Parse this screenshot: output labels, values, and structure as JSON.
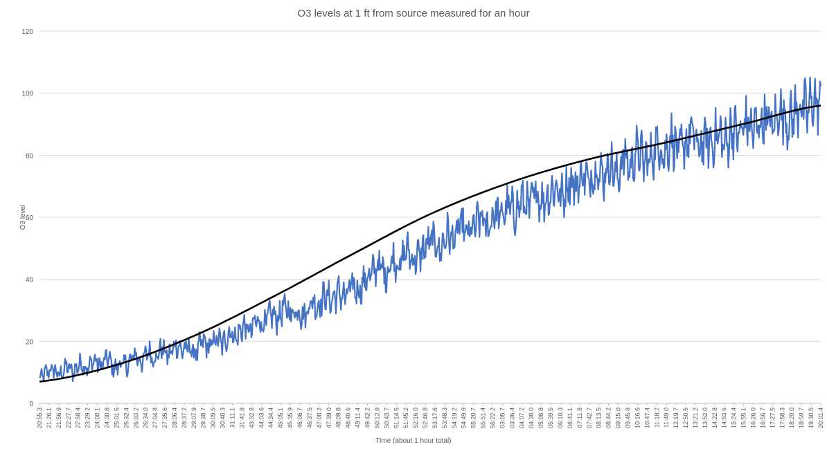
{
  "chart_data": {
    "type": "line",
    "title": "O3 levels at 1 ft from source measured for an hour",
    "xlabel": "Time (about 1 hour total)",
    "ylabel": "O3 level",
    "ylim": [
      0,
      120
    ],
    "yticks": [
      0,
      20,
      40,
      60,
      80,
      100,
      120
    ],
    "grid": true,
    "legend": "none",
    "x_tick_labels": [
      "20:55.3",
      "21:26.1",
      "21:56.9",
      "22:27.7",
      "22:58.4",
      "23:29.2",
      "24:00.1",
      "24:30.8",
      "25:01.6",
      "25:32.4",
      "26:03.2",
      "26:34.0",
      "27:04.8",
      "27:35.6",
      "28:06.4",
      "28:37.2",
      "29:07.9",
      "29:38.7",
      "30:09.5",
      "30:40.3",
      "31:11.1",
      "31:41.8",
      "43:32.8",
      "44:03.6",
      "44:34.4",
      "45:05.1",
      "45:35.9",
      "46:06.7",
      "46:37.5",
      "47:08.2",
      "47:39.0",
      "48:09.8",
      "48:40.6",
      "49:11.4",
      "49:42.2",
      "50:12.9",
      "50:43.7",
      "51:14.5",
      "51:45.2",
      "52:16.0",
      "52:46.8",
      "53:17.6",
      "53:48.3",
      "54:19.2",
      "54:49.9",
      "55:20.7",
      "55:51.4",
      "56:22.2",
      "03:05.7",
      "03:36.4",
      "04:07.2",
      "04:38.0",
      "05:08.8",
      "05:39.5",
      "06:10.3",
      "06:41.1",
      "07:11.8",
      "07:42.7",
      "08:13.5",
      "08:44.2",
      "09:15.0",
      "09:45.8",
      "10:16.6",
      "10:47.4",
      "11:18.2",
      "11:49.0",
      "12:19.7",
      "12:50.5",
      "13:21.2",
      "13:52.0",
      "14:22.8",
      "14:53.6",
      "15:24.4",
      "15:55.1",
      "16:26.0",
      "16:56.7",
      "17:27.5",
      "17:58.3",
      "18:29.0",
      "18:59.7",
      "19:30.5",
      "20:01.4"
    ],
    "series": [
      {
        "role": "measurements",
        "color": "#4472c4",
        "values": [
          8,
          10,
          11,
          9,
          12,
          10,
          13,
          11,
          14,
          12,
          15,
          11,
          13,
          12,
          16,
          13,
          17,
          14,
          18,
          15,
          19,
          17,
          18,
          16,
          20,
          18,
          21,
          19,
          23,
          21,
          25,
          23,
          27,
          25,
          29,
          27,
          31,
          29,
          30,
          28,
          33,
          31,
          35,
          33,
          36,
          34,
          38,
          36,
          40,
          42,
          45,
          41,
          47,
          44,
          50,
          46,
          48,
          51,
          53,
          49,
          55,
          52,
          58,
          54,
          57,
          60,
          56,
          62,
          60,
          64,
          61,
          66,
          63,
          68,
          65,
          67,
          70,
          66,
          72,
          70,
          74,
          71,
          76,
          73,
          78,
          72,
          80,
          76,
          82,
          78,
          79,
          84,
          80,
          86,
          81,
          83,
          88,
          82,
          85,
          84,
          87,
          83,
          89,
          86,
          91,
          88,
          90,
          92,
          89,
          95,
          91,
          93,
          96,
          94,
          98,
          95
        ],
        "smoothing_window": 0.055
      },
      {
        "role": "trend",
        "color": "#000000",
        "curve": "sigmoid",
        "values_at_ticks": {
          "x_fraction": [
            0,
            0.1,
            0.2,
            0.3,
            0.4,
            0.5,
            0.6,
            0.7,
            0.8,
            0.9,
            1.0
          ],
          "y": [
            7,
            12.5,
            22,
            34.5,
            48,
            61,
            71,
            78.5,
            84,
            90,
            96
          ]
        }
      }
    ]
  }
}
